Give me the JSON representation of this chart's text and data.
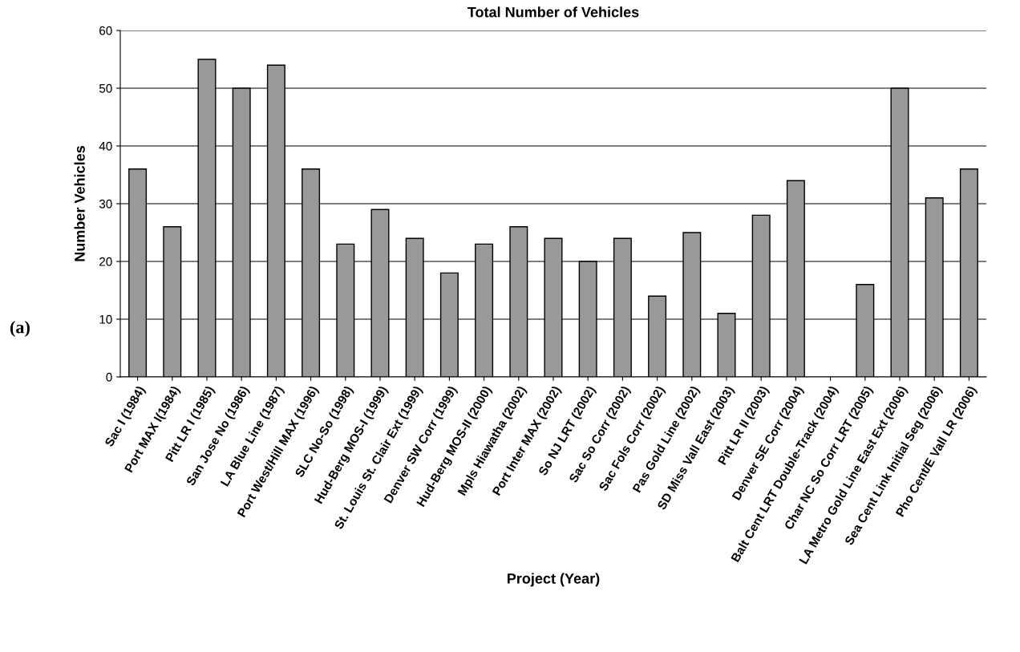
{
  "chart_data": {
    "type": "bar",
    "title": "Total Number of Vehicles",
    "xlabel": "Project (Year)",
    "ylabel": "Number Vehicles",
    "annotations": [
      "(a)"
    ],
    "categories": [
      "Sac I (1984)",
      "Port MAX I(1984)",
      "Pitt LR I (1985)",
      "San Jose No (1986)",
      "LA Blue Line (1987)",
      "Port West/Hill MAX (1996)",
      "SLC No-So (1998)",
      "Hud-Berg MOS-I (1999)",
      "St. Louis St. Clair Ext (1999)",
      "Denver SW Corr (1999)",
      "Hud-Berg MOS-II (2000)",
      "Mpls Hiawatha (2002)",
      "Port Inter MAX (2002)",
      "So NJ LRT (2002)",
      "Sac So Corr (2002)",
      "Sac Fols Corr (2002)",
      "Pas Gold Line (2002)",
      "SD Miss Vall East (2003)",
      "Pitt LR II (2003)",
      "Denver SE Corr (2004)",
      "Balt Cent LRT Double-Track (2004)",
      "Char NC So Corr LRT (2005)",
      "LA Metro Gold Line East Ext (2006)",
      "Sea Cent Link Initial Seg (2006)",
      "Pho Cent/E Vall LR (2006)"
    ],
    "values": [
      36,
      26,
      55,
      50,
      54,
      36,
      23,
      29,
      24,
      18,
      23,
      26,
      24,
      20,
      24,
      14,
      25,
      11,
      28,
      34,
      null,
      16,
      50,
      31,
      36
    ],
    "color": "#999999",
    "ylim": [
      0,
      60
    ],
    "yticks": [
      0,
      10,
      20,
      30,
      40,
      50,
      60
    ],
    "grid": "y"
  }
}
